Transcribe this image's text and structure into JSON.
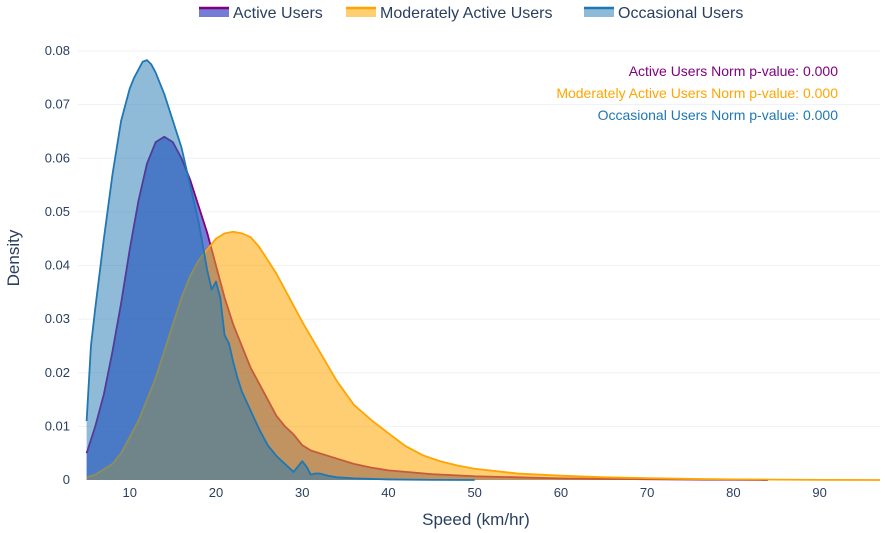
{
  "chart_data": {
    "type": "area",
    "xlabel": "Speed (km/hr)",
    "ylabel": "Density",
    "xlim": [
      4,
      97
    ],
    "ylim": [
      0,
      0.08
    ],
    "xticks": [
      10,
      20,
      30,
      40,
      50,
      60,
      70,
      80,
      90
    ],
    "yticks": [
      0,
      0.01,
      0.02,
      0.03,
      0.04,
      0.05,
      0.06,
      0.07,
      0.08
    ],
    "xtick_labels": [
      "10",
      "20",
      "30",
      "40",
      "50",
      "60",
      "70",
      "80",
      "90"
    ],
    "ytick_labels": [
      "0",
      "0.01",
      "0.02",
      "0.03",
      "0.04",
      "0.05",
      "0.06",
      "0.07",
      "0.08"
    ],
    "grid": true,
    "legend_position": "top",
    "series": [
      {
        "name": "Active Users",
        "color": "#800080",
        "fill": "rgba(70,80,200,0.75)",
        "x": [
          5,
          6,
          7,
          8,
          9,
          10,
          11,
          12,
          13,
          14,
          15,
          16,
          17,
          18,
          19,
          20,
          21,
          22,
          23,
          24,
          25,
          26,
          27,
          28,
          29,
          30,
          31,
          32,
          34,
          36,
          38,
          40,
          45,
          50,
          55,
          60,
          65,
          70,
          75,
          80,
          84
        ],
        "y": [
          0.005,
          0.01,
          0.016,
          0.024,
          0.033,
          0.043,
          0.052,
          0.059,
          0.063,
          0.064,
          0.063,
          0.06,
          0.056,
          0.051,
          0.046,
          0.04,
          0.034,
          0.029,
          0.025,
          0.021,
          0.018,
          0.015,
          0.012,
          0.01,
          0.0085,
          0.0065,
          0.0055,
          0.005,
          0.004,
          0.003,
          0.0023,
          0.0018,
          0.0011,
          0.0007,
          0.0005,
          0.0003,
          0.0002,
          0.00015,
          0.0001,
          5e-05,
          0.0
        ]
      },
      {
        "name": "Moderately Active Users",
        "color": "#FFA500",
        "fill": "rgba(255,165,0,0.55)",
        "x": [
          5,
          6,
          7,
          8,
          9,
          10,
          11,
          12,
          13,
          14,
          15,
          16,
          17,
          18,
          19,
          20,
          21,
          22,
          23,
          24,
          25,
          26,
          27,
          28,
          29,
          30,
          32,
          34,
          36,
          38,
          40,
          42,
          44,
          46,
          48,
          50,
          55,
          60,
          65,
          70,
          75,
          80,
          85,
          90,
          97
        ],
        "y": [
          0.0005,
          0.001,
          0.002,
          0.003,
          0.005,
          0.008,
          0.011,
          0.015,
          0.019,
          0.024,
          0.029,
          0.034,
          0.038,
          0.041,
          0.043,
          0.045,
          0.046,
          0.0463,
          0.046,
          0.0453,
          0.0435,
          0.041,
          0.0385,
          0.0355,
          0.0325,
          0.0295,
          0.024,
          0.0185,
          0.014,
          0.0112,
          0.0087,
          0.0063,
          0.0046,
          0.0035,
          0.0027,
          0.0021,
          0.0012,
          0.0008,
          0.0005,
          0.00035,
          0.0002,
          0.00012,
          7e-05,
          3e-05,
          0.0
        ]
      },
      {
        "name": "Occasional Users",
        "color": "#1F77B4",
        "fill": "rgba(31,119,180,0.5)",
        "x": [
          5,
          5.5,
          6,
          7,
          8,
          9,
          10,
          10.5,
          11,
          11.5,
          12,
          12.5,
          13,
          13.5,
          14,
          15,
          16,
          17,
          18,
          19,
          19.5,
          20,
          20.5,
          21,
          21.5,
          22,
          22.5,
          23,
          24,
          25,
          26,
          27,
          28,
          29,
          29.5,
          30,
          30.5,
          31,
          31.5,
          32,
          33,
          34,
          36,
          38,
          40,
          45,
          50
        ],
        "y": [
          0.011,
          0.025,
          0.032,
          0.045,
          0.057,
          0.067,
          0.073,
          0.075,
          0.0765,
          0.078,
          0.0783,
          0.0775,
          0.076,
          0.074,
          0.072,
          0.067,
          0.062,
          0.055,
          0.048,
          0.039,
          0.0355,
          0.037,
          0.034,
          0.027,
          0.0255,
          0.022,
          0.019,
          0.0165,
          0.013,
          0.0095,
          0.0065,
          0.0045,
          0.003,
          0.0015,
          0.0025,
          0.0035,
          0.0025,
          0.001,
          0.0012,
          0.0012,
          0.0008,
          0.0005,
          0.0003,
          0.0002,
          0.0001,
          3e-05,
          0.0
        ]
      }
    ],
    "annotations": [
      {
        "text": "Active Users Norm p-value: 0.000",
        "color": "#800080"
      },
      {
        "text": "Moderately Active Users Norm p-value: 0.000",
        "color": "#FFA500"
      },
      {
        "text": "Occasional Users Norm p-value: 0.000",
        "color": "#1F77B4"
      }
    ]
  }
}
